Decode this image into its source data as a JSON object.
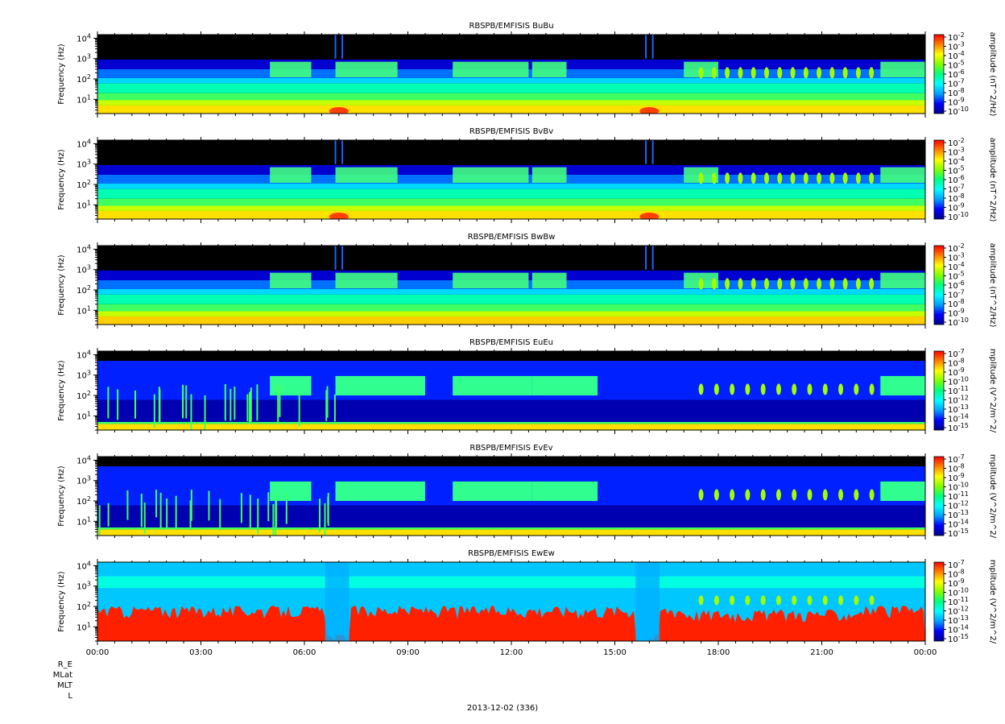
{
  "colors": {
    "background": "#000000",
    "colormap": [
      "#00008f",
      "#0000ff",
      "#00a0ff",
      "#00ffff",
      "#00ff80",
      "#80ff00",
      "#ffff00",
      "#ff8000",
      "#ff0000"
    ]
  },
  "bottom_labels": {
    "date": "2013-12-02 (336)",
    "rows": [
      "R_E",
      "MLat",
      "MLT",
      "L"
    ]
  },
  "chart_data": [
    {
      "type": "heatmap",
      "title": "RBSPB/EMFISIS  BuBu",
      "ylabel": "Frequency (Hz)",
      "yscale": "log",
      "ylim": [
        2,
        15000
      ],
      "yticks": [
        "10^1",
        "10^2",
        "10^3",
        "10^4"
      ],
      "colorbar_label": "amplitude (nT^2/Hz)",
      "colorbar_ticks": [
        "10^-2",
        "10^-3",
        "10^-4",
        "10^-5",
        "10^-6",
        "10^-7",
        "10^-8",
        "10^-9",
        "10^-10"
      ],
      "field": "B"
    },
    {
      "type": "heatmap",
      "title": "RBSPB/EMFISIS  BvBv",
      "ylabel": "Frequency (Hz)",
      "yscale": "log",
      "ylim": [
        2,
        15000
      ],
      "yticks": [
        "10^1",
        "10^2",
        "10^3",
        "10^4"
      ],
      "colorbar_label": "amplitude (nT^2/Hz)",
      "colorbar_ticks": [
        "10^-2",
        "10^-3",
        "10^-4",
        "10^-5",
        "10^-6",
        "10^-7",
        "10^-8",
        "10^-9",
        "10^-10"
      ],
      "field": "B"
    },
    {
      "type": "heatmap",
      "title": "RBSPB/EMFISIS  BwBw",
      "ylabel": "Frequency (Hz)",
      "yscale": "log",
      "ylim": [
        2,
        15000
      ],
      "yticks": [
        "10^1",
        "10^2",
        "10^3",
        "10^4"
      ],
      "colorbar_label": "amplitude (nT^2/Hz)",
      "colorbar_ticks": [
        "10^-2",
        "10^-3",
        "10^-4",
        "10^-5",
        "10^-6",
        "10^-7",
        "10^-8",
        "10^-9",
        "10^-10"
      ],
      "field": "Bw"
    },
    {
      "type": "heatmap",
      "title": "RBSPB/EMFISIS  EuEu",
      "ylabel": "Frequency (Hz)",
      "yscale": "log",
      "ylim": [
        2,
        15000
      ],
      "yticks": [
        "10^1",
        "10^2",
        "10^3",
        "10^4"
      ],
      "colorbar_label": "mplitude (V^2/m^2/",
      "colorbar_ticks": [
        "10^-7",
        "10^-8",
        "10^-9",
        "10^-10",
        "10^-11",
        "10^-12",
        "10^-13",
        "10^-14",
        "10^-15"
      ],
      "field": "E"
    },
    {
      "type": "heatmap",
      "title": "RBSPB/EMFISIS  EvEv",
      "ylabel": "Frequency (Hz)",
      "yscale": "log",
      "ylim": [
        2,
        15000
      ],
      "yticks": [
        "10^1",
        "10^2",
        "10^3",
        "10^4"
      ],
      "colorbar_label": "mplitude (V^2/m^2/",
      "colorbar_ticks": [
        "10^-7",
        "10^-8",
        "10^-9",
        "10^-10",
        "10^-11",
        "10^-12",
        "10^-13",
        "10^-14",
        "10^-15"
      ],
      "field": "E"
    },
    {
      "type": "heatmap",
      "title": "RBSPB/EMFISIS  EwEw",
      "ylabel": "Frequency (Hz)",
      "yscale": "log",
      "ylim": [
        2,
        15000
      ],
      "yticks": [
        "10^1",
        "10^2",
        "10^3",
        "10^4"
      ],
      "colorbar_label": "mplitude (V^2/m^2/",
      "colorbar_ticks": [
        "10^-7",
        "10^-8",
        "10^-9",
        "10^-10",
        "10^-11",
        "10^-12",
        "10^-13",
        "10^-14",
        "10^-15"
      ],
      "field": "Ew"
    }
  ],
  "time_axis": {
    "xlim_hours": [
      0,
      24
    ],
    "xtick_labels": [
      "00:00",
      "03:00",
      "06:00",
      "09:00",
      "12:00",
      "15:00",
      "18:00",
      "21:00",
      "00:00"
    ]
  }
}
